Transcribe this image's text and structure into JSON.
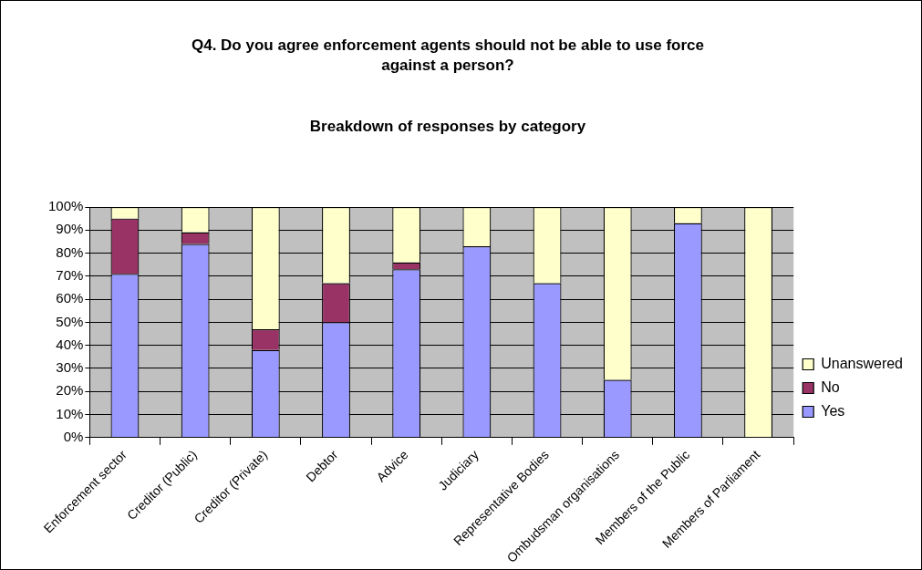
{
  "chart_data": {
    "type": "bar",
    "title": "Q4. Do you agree enforcement agents should not be able to use force against a person?",
    "subtitle": "Breakdown of responses by category",
    "stacked": true,
    "categories": [
      "Enforcement sector",
      "Creditor (Public)",
      "Creditor (Private)",
      "Debtor",
      "Advice",
      "Judiciary",
      "Representative Bodies",
      "Ombudsman organisations",
      "Members of the Public",
      "Members of Parliament"
    ],
    "series": [
      {
        "name": "Yes",
        "color": "#9999ff",
        "values": [
          71,
          84,
          38,
          50,
          73,
          83,
          67,
          25,
          93,
          0
        ]
      },
      {
        "name": "No",
        "color": "#993366",
        "values": [
          24,
          5,
          9,
          17,
          3,
          0,
          0,
          0,
          0,
          0
        ]
      },
      {
        "name": "Unanswered",
        "color": "#ffffcc",
        "values": [
          5,
          11,
          53,
          33,
          24,
          17,
          33,
          75,
          7,
          100
        ]
      }
    ],
    "ylim": [
      0,
      100
    ],
    "yticks": [
      {
        "value": 0,
        "label": "0%"
      },
      {
        "value": 10,
        "label": "10%"
      },
      {
        "value": 20,
        "label": "20%"
      },
      {
        "value": 30,
        "label": "30%"
      },
      {
        "value": 40,
        "label": "40%"
      },
      {
        "value": 50,
        "label": "50%"
      },
      {
        "value": 60,
        "label": "60%"
      },
      {
        "value": 70,
        "label": "70%"
      },
      {
        "value": 80,
        "label": "80%"
      },
      {
        "value": 90,
        "label": "90%"
      },
      {
        "value": 100,
        "label": "100%"
      }
    ],
    "grid": "y",
    "legend": "right"
  }
}
